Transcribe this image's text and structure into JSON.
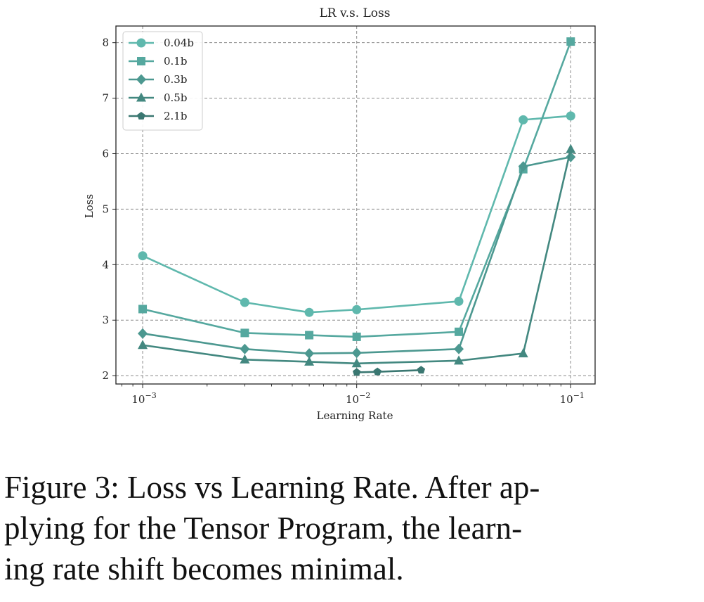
{
  "chart_data": {
    "type": "line",
    "title": "LR v.s. Loss",
    "xlabel": "Learning Rate",
    "ylabel": "Loss",
    "xscale": "log",
    "xlim": [
      0.00075,
      0.13
    ],
    "ylim": [
      1.85,
      8.3
    ],
    "xticks": [
      {
        "value": 0.001,
        "base": "10",
        "exp": "−3"
      },
      {
        "value": 0.01,
        "base": "10",
        "exp": "−2"
      },
      {
        "value": 0.1,
        "base": "10",
        "exp": "−1"
      }
    ],
    "yticks": [
      2,
      3,
      4,
      5,
      6,
      7,
      8
    ],
    "grid": true,
    "legend_position": "top-left",
    "series": [
      {
        "name": "0.04b",
        "marker": "circle",
        "color": "#5fb8ad",
        "x": [
          0.001,
          0.003,
          0.006,
          0.01,
          0.03,
          0.06,
          0.1
        ],
        "y": [
          4.16,
          3.32,
          3.14,
          3.19,
          3.34,
          6.61,
          6.68
        ]
      },
      {
        "name": "0.1b",
        "marker": "square",
        "color": "#55a89f",
        "x": [
          0.001,
          0.003,
          0.006,
          0.01,
          0.03,
          0.06,
          0.1
        ],
        "y": [
          3.2,
          2.77,
          2.73,
          2.7,
          2.79,
          5.72,
          8.02
        ]
      },
      {
        "name": "0.3b",
        "marker": "diamond",
        "color": "#4c9890",
        "x": [
          0.001,
          0.003,
          0.006,
          0.01,
          0.03,
          0.06,
          0.1
        ],
        "y": [
          2.76,
          2.48,
          2.4,
          2.41,
          2.48,
          5.77,
          5.94
        ]
      },
      {
        "name": "0.5b",
        "marker": "triangle",
        "color": "#438880",
        "x": [
          0.001,
          0.003,
          0.006,
          0.01,
          0.03,
          0.06,
          0.1
        ],
        "y": [
          2.55,
          2.29,
          2.25,
          2.22,
          2.27,
          2.4,
          6.08
        ]
      },
      {
        "name": "2.1b",
        "marker": "pentagon",
        "color": "#3a7771",
        "x": [
          0.01,
          0.0125,
          0.02
        ],
        "y": [
          2.06,
          2.07,
          2.1
        ]
      }
    ]
  },
  "caption_lines": [
    "Figure 3: Loss vs Learning Rate. After ap-",
    "plying for the Tensor Program, the learn-",
    "ing rate shift becomes minimal."
  ]
}
